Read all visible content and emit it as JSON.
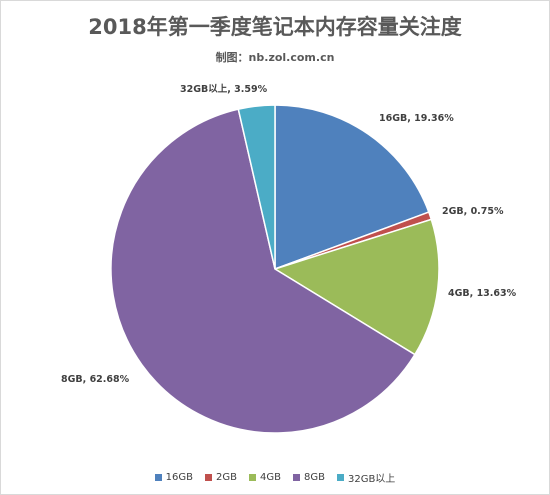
{
  "chart_data": {
    "type": "pie",
    "title": "2018年第一季度笔记本内存容量关注度",
    "subtitle": "制图：nb.zol.com.cn",
    "categories": [
      "16GB",
      "2GB",
      "4GB",
      "8GB",
      "32GB以上"
    ],
    "values": [
      19.36,
      0.75,
      13.63,
      62.68,
      3.59
    ],
    "data_labels": [
      "16GB, 19.36%",
      "2GB, 0.75%",
      "4GB, 13.63%",
      "8GB, 62.68%",
      "32GB以上, 3.59%"
    ],
    "colors": [
      "#4f81bd",
      "#c0504d",
      "#9bbb59",
      "#8064a2",
      "#4bacc6"
    ],
    "start_angle": "12 o'clock",
    "direction": "clockwise",
    "legend": {
      "position": "bottom",
      "items": [
        "16GB",
        "2GB",
        "4GB",
        "8GB",
        "32GB以上"
      ]
    }
  }
}
